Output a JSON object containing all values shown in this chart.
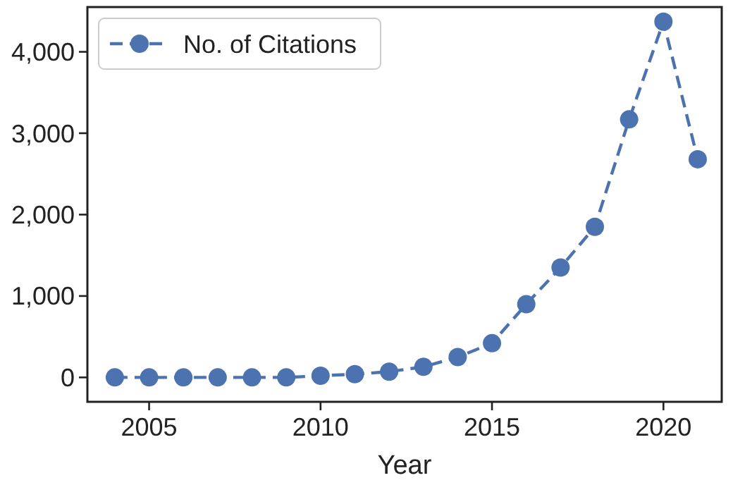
{
  "chart_data": {
    "type": "line",
    "xlabel": "Year",
    "x": [
      2004,
      2005,
      2006,
      2007,
      2008,
      2009,
      2010,
      2011,
      2012,
      2013,
      2014,
      2015,
      2016,
      2017,
      2018,
      2019,
      2020,
      2021
    ],
    "series": [
      {
        "name": "No. of Citations",
        "color": "#4c72b0",
        "values": [
          0,
          0,
          0,
          0,
          0,
          0,
          20,
          40,
          70,
          130,
          250,
          420,
          900,
          1350,
          1850,
          3170,
          4370,
          2680
        ]
      }
    ],
    "xlim": [
      2003.2,
      2021.7
    ],
    "xticks": [
      2005,
      2010,
      2015,
      2020
    ],
    "ylim": [
      -300,
      4550
    ],
    "yticks": [
      {
        "value": 0,
        "label": "0"
      },
      {
        "value": 1000,
        "label": "1,000"
      },
      {
        "value": 2000,
        "label": "2,000"
      },
      {
        "value": 3000,
        "label": "3,000"
      },
      {
        "value": 4000,
        "label": "4,000"
      }
    ],
    "grid": false,
    "legend": "top left",
    "marker": "circle",
    "line_style": "dashed"
  }
}
